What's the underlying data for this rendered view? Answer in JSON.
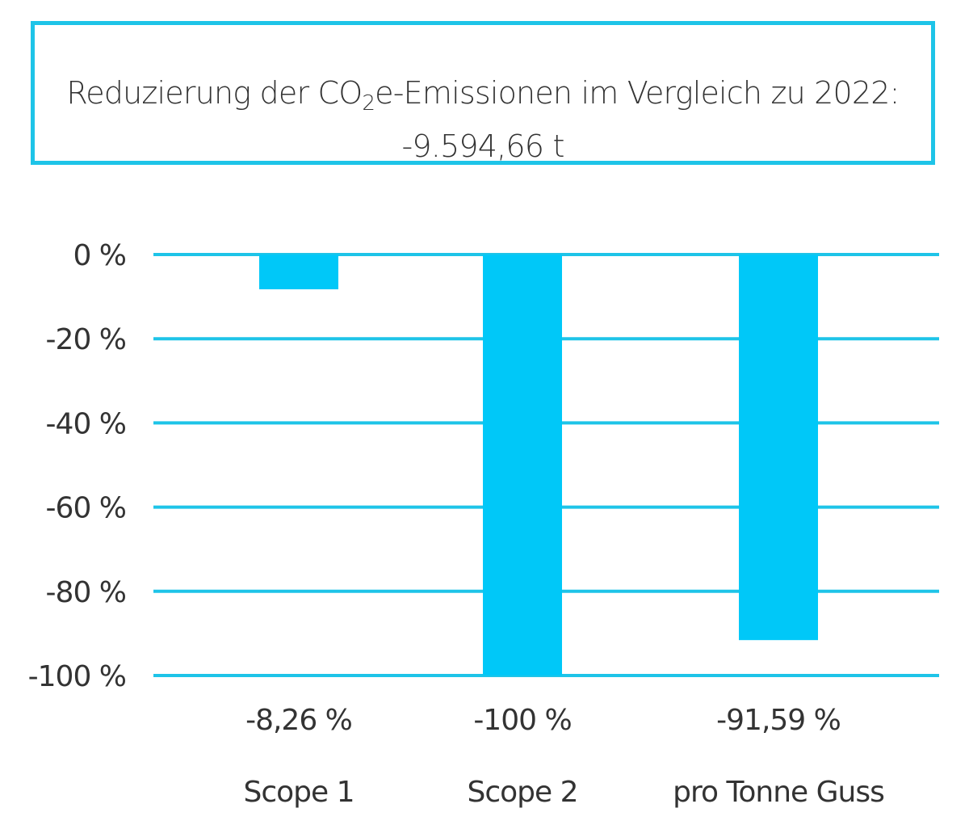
{
  "title": {
    "prefix": "Reduzierung der CO",
    "subscript": "2",
    "suffix": "e-Emissionen im Vergleich zu 2022:",
    "total": "-9.594,66 t"
  },
  "colors": {
    "accent": "#00c8f8",
    "gridline": "#1ec4e8",
    "text": "#333333"
  },
  "chart_data": {
    "type": "bar",
    "categories": [
      "Scope 1",
      "Scope 2",
      "pro Tonne Guss"
    ],
    "values": [
      -8.26,
      -100,
      -91.59
    ],
    "value_labels": [
      "-8,26 %",
      "-100 %",
      "-91,59 %"
    ],
    "ylim": [
      -100,
      0
    ],
    "yticks": [
      0,
      -20,
      -40,
      -60,
      -80,
      -100
    ],
    "ytick_labels": [
      "0 %",
      "-20 %",
      "-40 %",
      "-60 %",
      "-80 %",
      "-100 %"
    ],
    "grid": true,
    "xlabel": "",
    "ylabel": ""
  }
}
